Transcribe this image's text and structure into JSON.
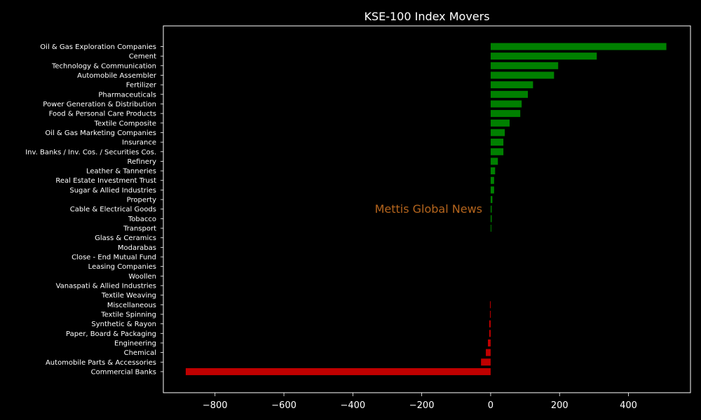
{
  "chart_data": {
    "type": "bar",
    "orientation": "horizontal",
    "title": "KSE-100 Index Movers",
    "xlabel": "",
    "ylabel": "",
    "xlim": [
      -950,
      580
    ],
    "xticks": [
      -800,
      -600,
      -400,
      -200,
      0,
      200,
      400
    ],
    "grid": false,
    "legend": "none",
    "watermark": "Mettis Global News",
    "colors": {
      "background": "#000000",
      "positive": "#008000",
      "negative": "#c00000",
      "text": "#ffffff",
      "watermark": "#b5651d"
    },
    "categories": [
      "Oil & Gas Exploration Companies",
      "Cement",
      "Technology & Communication",
      "Automobile Assembler",
      "Fertilizer",
      "Pharmaceuticals",
      "Power Generation & Distribution",
      "Food & Personal Care Products",
      "Textile Composite",
      "Oil & Gas Marketing Companies",
      "Insurance",
      "Inv. Banks / Inv. Cos. / Securities Cos.",
      "Refinery",
      "Leather & Tanneries",
      "Real Estate Investment Trust",
      "Sugar & Allied Industries",
      "Property",
      "Cable & Electrical Goods",
      "Tobacco",
      "Transport",
      "Glass & Ceramics",
      "Modarabas",
      "Close - End Mutual Fund",
      "Leasing Companies",
      "Woollen",
      "Vanaspati & Allied Industries",
      "Textile Weaving",
      "Miscellaneous",
      "Textile Spinning",
      "Synthetic & Rayon",
      "Paper, Board & Packaging",
      "Engineering",
      "Chemical",
      "Automobile Parts & Accessories",
      "Commercial Banks"
    ],
    "values": [
      510,
      308,
      196,
      184,
      123,
      108,
      90,
      86,
      55,
      41,
      37,
      37,
      21,
      13,
      10,
      10,
      5,
      3,
      3,
      2,
      0,
      0,
      0,
      0,
      0,
      0,
      0,
      -2,
      -2,
      -4,
      -4,
      -8,
      -14,
      -28,
      -885
    ]
  }
}
